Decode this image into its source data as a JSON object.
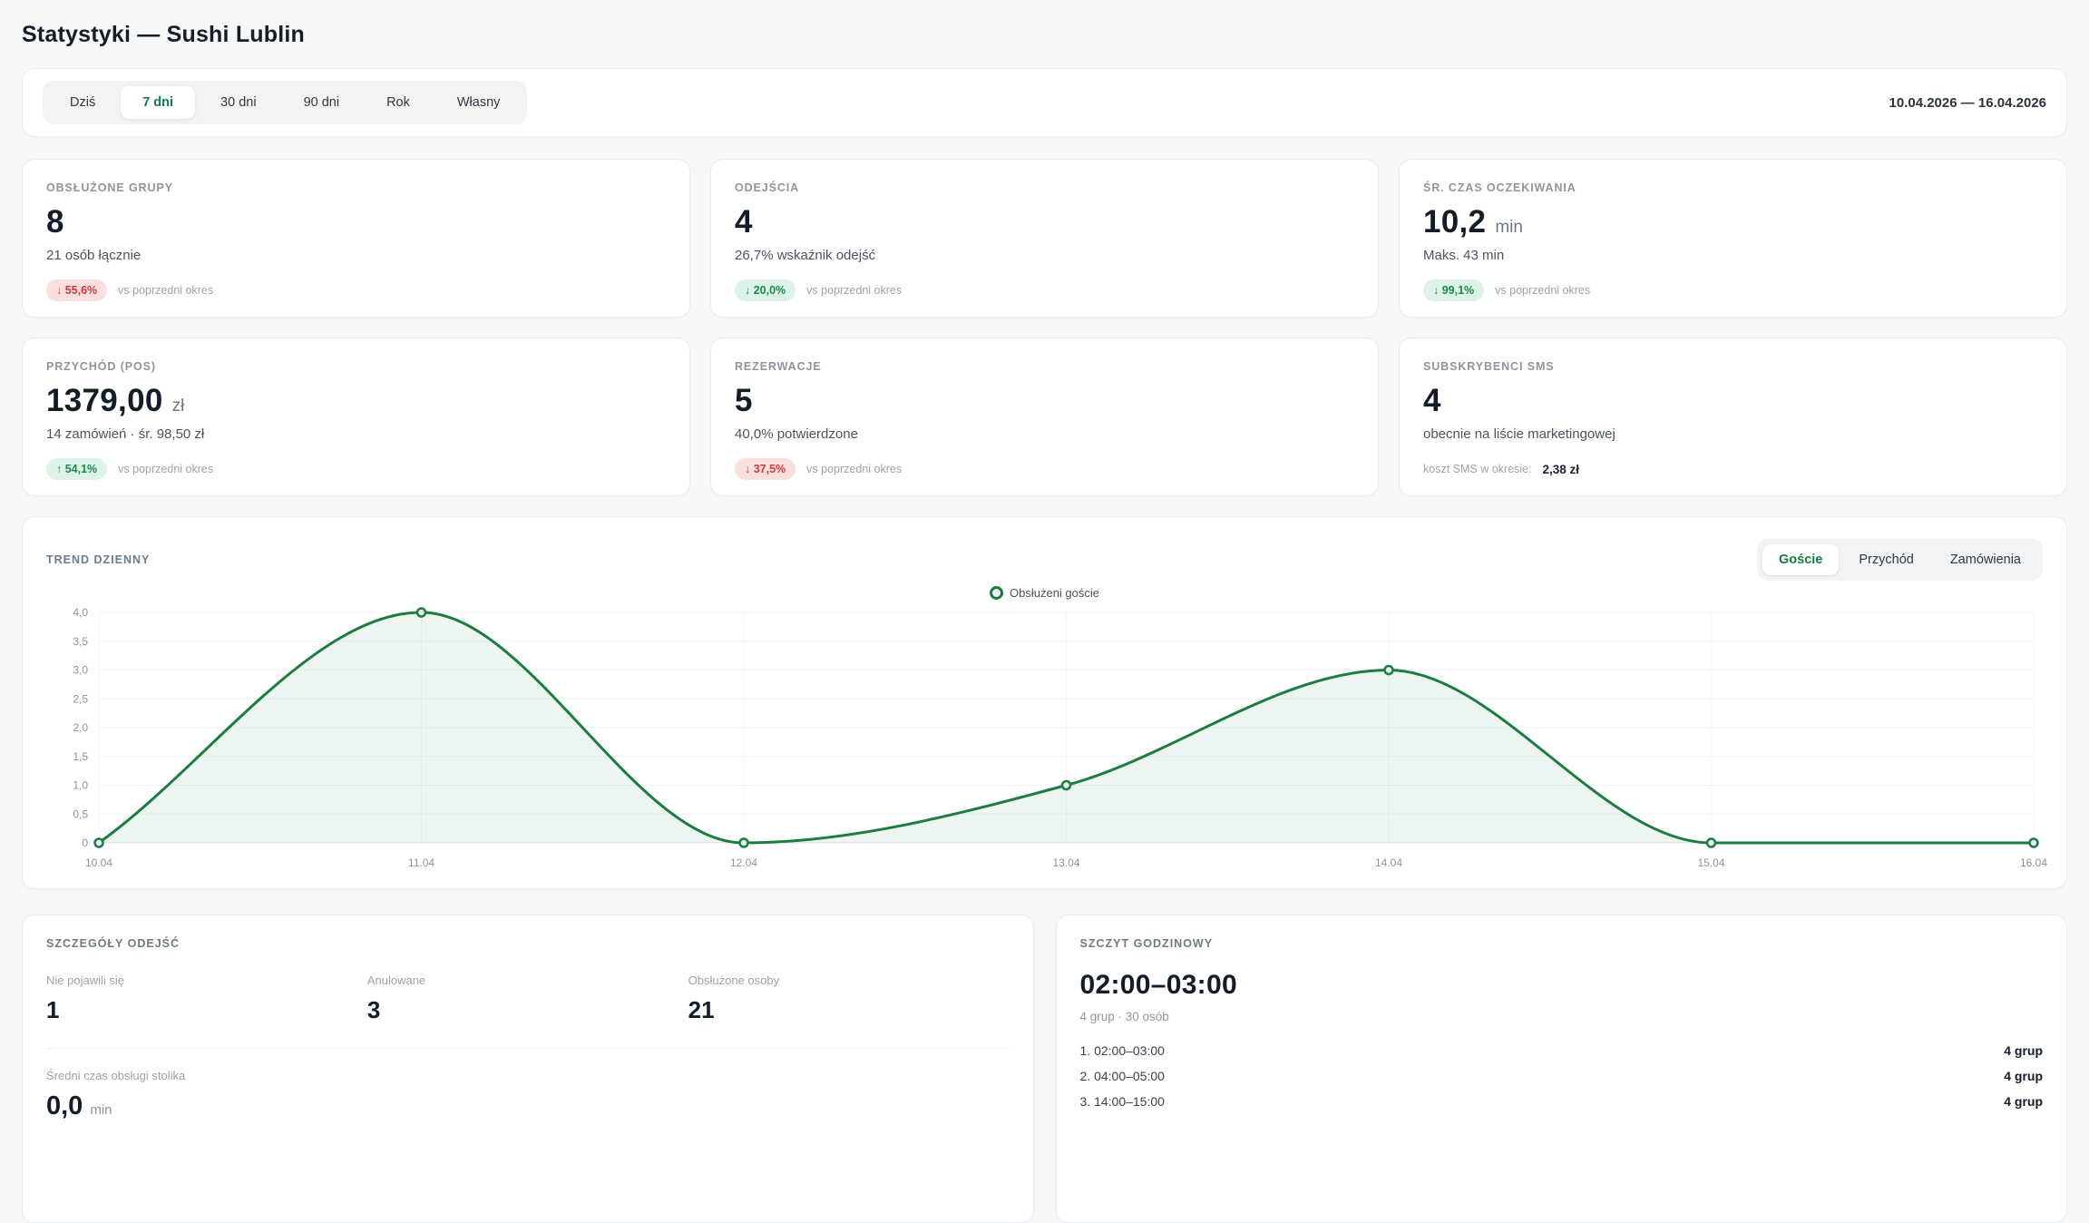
{
  "page": {
    "title": "Statystyki — Sushi Lublin"
  },
  "toolbar": {
    "range_tabs": [
      {
        "label": "Dziś",
        "active": false
      },
      {
        "label": "7 dni",
        "active": true
      },
      {
        "label": "30 dni",
        "active": false
      },
      {
        "label": "90 dni",
        "active": false
      },
      {
        "label": "Rok",
        "active": false
      },
      {
        "label": "Własny",
        "active": false
      }
    ],
    "date_range": "10.04.2026 — 16.04.2026"
  },
  "kpis": [
    {
      "label": "OBSŁUŻONE GRUPY",
      "value": "8",
      "unit": "",
      "subtitle": "21 osób łącznie",
      "badge": {
        "arrow": "↓",
        "value": "55,6%",
        "tone": "negative"
      },
      "note": "vs poprzedni okres"
    },
    {
      "label": "ODEJŚCIA",
      "value": "4",
      "unit": "",
      "subtitle": "26,7% wskaźnik odejść",
      "badge": {
        "arrow": "↓",
        "value": "20,0%",
        "tone": "positive"
      },
      "note": "vs poprzedni okres"
    },
    {
      "label": "ŚR. CZAS OCZEKIWANIA",
      "value": "10,2",
      "unit": "min",
      "subtitle": "Maks. 43 min",
      "badge": {
        "arrow": "↓",
        "value": "99,1%",
        "tone": "positive"
      },
      "note": "vs poprzedni okres"
    },
    {
      "label": "PRZYCHÓD (POS)",
      "value": "1379,00",
      "unit": "zł",
      "subtitle": "14 zamówień · śr. 98,50 zł",
      "badge": {
        "arrow": "↑",
        "value": "54,1%",
        "tone": "positive"
      },
      "note": "vs poprzedni okres"
    },
    {
      "label": "REZERWACJE",
      "value": "5",
      "unit": "",
      "subtitle": "40,0% potwierdzone",
      "badge": {
        "arrow": "↓",
        "value": "37,5%",
        "tone": "negative"
      },
      "note": "vs poprzedni okres"
    },
    {
      "label": "SUBSKRYBENCI SMS",
      "value": "4",
      "unit": "",
      "subtitle": "obecnie na liście marketingowej",
      "footer": {
        "label": "koszt SMS w okresie:",
        "value": "2,38 zł"
      }
    }
  ],
  "trend": {
    "title": "TREND DZIENNY",
    "tabs": [
      {
        "label": "Goście",
        "active": true
      },
      {
        "label": "Przychód",
        "active": false
      },
      {
        "label": "Zamówienia",
        "active": false
      }
    ],
    "legend": "Obsłużeni goście"
  },
  "chart_data": {
    "type": "area",
    "title": "TREND DZIENNY",
    "x": [
      "10.04",
      "11.04",
      "12.04",
      "13.04",
      "14.04",
      "15.04",
      "16.04"
    ],
    "series": [
      {
        "name": "Obsłużeni goście",
        "values": [
          0,
          4,
          0,
          1,
          3,
          0,
          0
        ]
      }
    ],
    "ylim": [
      0,
      4
    ],
    "y_ticks": [
      "0",
      "0,5",
      "1,0",
      "1,5",
      "2,0",
      "2,5",
      "3,0",
      "3,5",
      "4,0"
    ],
    "grid": true,
    "legend_position": "top-center",
    "line_color": "#1d7c3f",
    "fill_color": "rgba(29,124,63,0.08)",
    "marker_fill": "#e6efe9"
  },
  "departures": {
    "title": "SZCZEGÓŁY ODEJŚĆ",
    "stats": [
      {
        "label": "Nie pojawili się",
        "value": "1"
      },
      {
        "label": "Anulowane",
        "value": "3"
      },
      {
        "label": "Obsłużone osoby",
        "value": "21"
      }
    ],
    "avg_service": {
      "label": "Średni czas obsługi stolika",
      "value": "0,0",
      "unit": "min"
    }
  },
  "peak": {
    "title": "SZCZYT GODZINOWY",
    "value": "02:00–03:00",
    "subtitle": "4 grup · 30 osób",
    "rows": [
      {
        "rank": "1.",
        "time": "02:00–03:00",
        "count": "4 grup"
      },
      {
        "rank": "2.",
        "time": "04:00–05:00",
        "count": "4 grup"
      },
      {
        "rank": "3.",
        "time": "14:00–15:00",
        "count": "4 grup"
      }
    ]
  },
  "colors": {
    "accent_green": "#157a46",
    "badge_positive_bg": "#def3e7",
    "badge_positive_text": "#178a4c",
    "badge_negative_bg": "#fbdfdf",
    "badge_negative_text": "#d23a3a",
    "chart_line": "#1d7c3f",
    "page_bg": "#f7f8fa"
  }
}
